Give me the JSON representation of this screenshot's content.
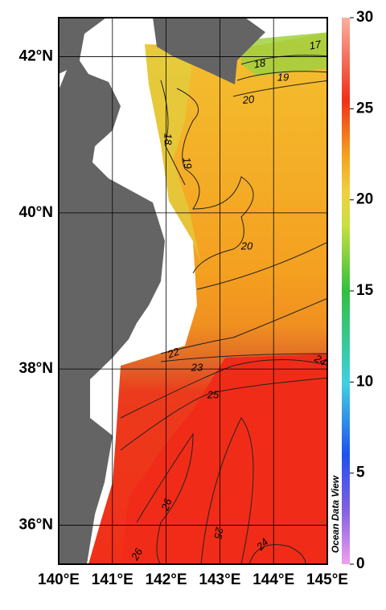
{
  "map": {
    "xlim": [
      140,
      145
    ],
    "ylim": [
      35.5,
      42.5
    ],
    "xticks": [
      {
        "value": 140,
        "label": "140°E"
      },
      {
        "value": 141,
        "label": "141°E"
      },
      {
        "value": 142,
        "label": "142°E"
      },
      {
        "value": 143,
        "label": "143°E"
      },
      {
        "value": 144,
        "label": "144°E"
      },
      {
        "value": 145,
        "label": "145°E"
      }
    ],
    "yticks": [
      {
        "value": 36,
        "label": "36°N"
      },
      {
        "value": 38,
        "label": "38°N"
      },
      {
        "value": 40,
        "label": "40°N"
      },
      {
        "value": 42,
        "label": "42°N"
      }
    ],
    "contour_labels": [
      17,
      18,
      19,
      20,
      18,
      19,
      20,
      22,
      23,
      24,
      25,
      26,
      25,
      24,
      26
    ]
  },
  "colorbar": {
    "lim": [
      0,
      30
    ],
    "ticks": [
      0,
      5,
      10,
      15,
      20,
      25,
      30
    ]
  },
  "watermark": "Ocean Data View"
}
